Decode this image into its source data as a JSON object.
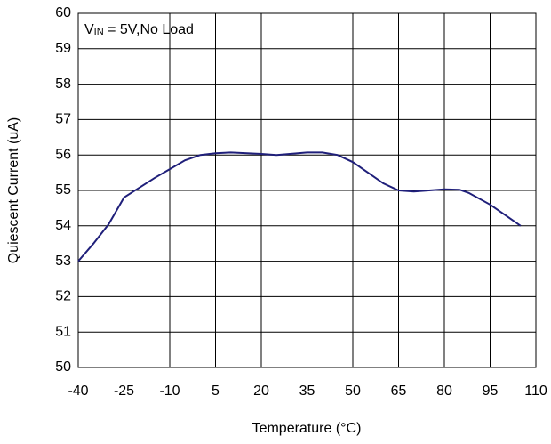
{
  "chart_data": {
    "type": "line",
    "annotation": {
      "prefix": "V",
      "subscript": "IN",
      "rest": " = 5V,No Load"
    },
    "x_label": "Temperature (°C)",
    "y_label": "Quiescent Current (uA)",
    "x": [
      -40,
      -35,
      -30,
      -25,
      -15,
      -10,
      -5,
      0,
      5,
      10,
      20,
      25,
      35,
      40,
      45,
      50,
      55,
      60,
      65,
      70,
      75,
      80,
      85,
      88,
      95,
      100,
      105
    ],
    "series": [
      {
        "color": "#1f1f7a",
        "values": [
          53.0,
          53.5,
          54.05,
          54.8,
          55.35,
          55.6,
          55.85,
          56.0,
          56.05,
          56.07,
          56.03,
          56.0,
          56.07,
          56.07,
          56.0,
          55.8,
          55.5,
          55.2,
          55.0,
          54.97,
          55.0,
          55.03,
          55.02,
          54.93,
          54.6,
          54.3,
          54.0
        ]
      }
    ],
    "xlim": [
      -40,
      110
    ],
    "xticks": [
      -40,
      -25,
      -10,
      5,
      20,
      35,
      50,
      65,
      80,
      95,
      110
    ],
    "ylim": [
      50,
      60
    ],
    "yticks": [
      50,
      51,
      52,
      53,
      54,
      55,
      56,
      57,
      58,
      59,
      60
    ],
    "grid": true
  }
}
